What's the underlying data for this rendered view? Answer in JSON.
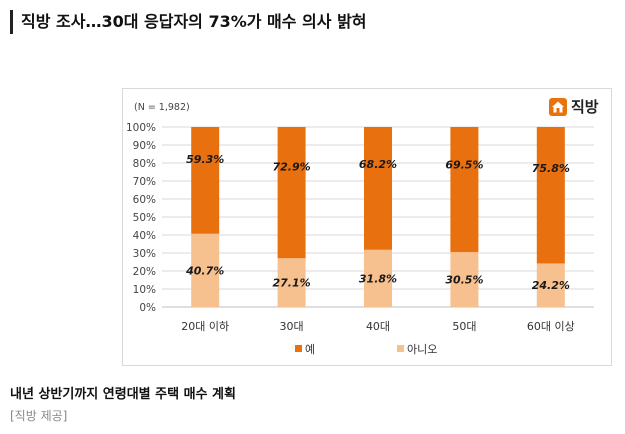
{
  "headline": "직방 조사…30대 응답자의 73%가 매수 의사 밝혀",
  "logo": {
    "text": "직방",
    "icon": "house-icon",
    "color": "#e8730c"
  },
  "caption": "내년 상반기까지 연령대별 주택 매수 계획",
  "credit": "[직방 제공]",
  "chart_data": {
    "type": "bar",
    "stacked": true,
    "sample_note": "(N = 1,982)",
    "categories": [
      "20대 이하",
      "30대",
      "40대",
      "50대",
      "60대 이상"
    ],
    "series": [
      {
        "name": "아니오",
        "values": [
          40.7,
          27.1,
          31.8,
          30.5,
          24.2
        ],
        "labels": [
          "40.7%",
          "27.1%",
          "31.8%",
          "30.5%",
          "24.2%"
        ],
        "color": "#f7c08f"
      },
      {
        "name": "예",
        "values": [
          59.3,
          72.9,
          68.2,
          69.5,
          75.8
        ],
        "labels": [
          "59.3%",
          "72.9%",
          "68.2%",
          "69.5%",
          "75.8%"
        ],
        "color": "#e8700f"
      }
    ],
    "legend_order": [
      "예",
      "아니오"
    ],
    "y_ticks": [
      "0%",
      "10%",
      "20%",
      "30%",
      "40%",
      "50%",
      "60%",
      "70%",
      "80%",
      "90%",
      "100%"
    ],
    "ylim": [
      0,
      100
    ],
    "grid": true,
    "legend_position": "bottom"
  }
}
